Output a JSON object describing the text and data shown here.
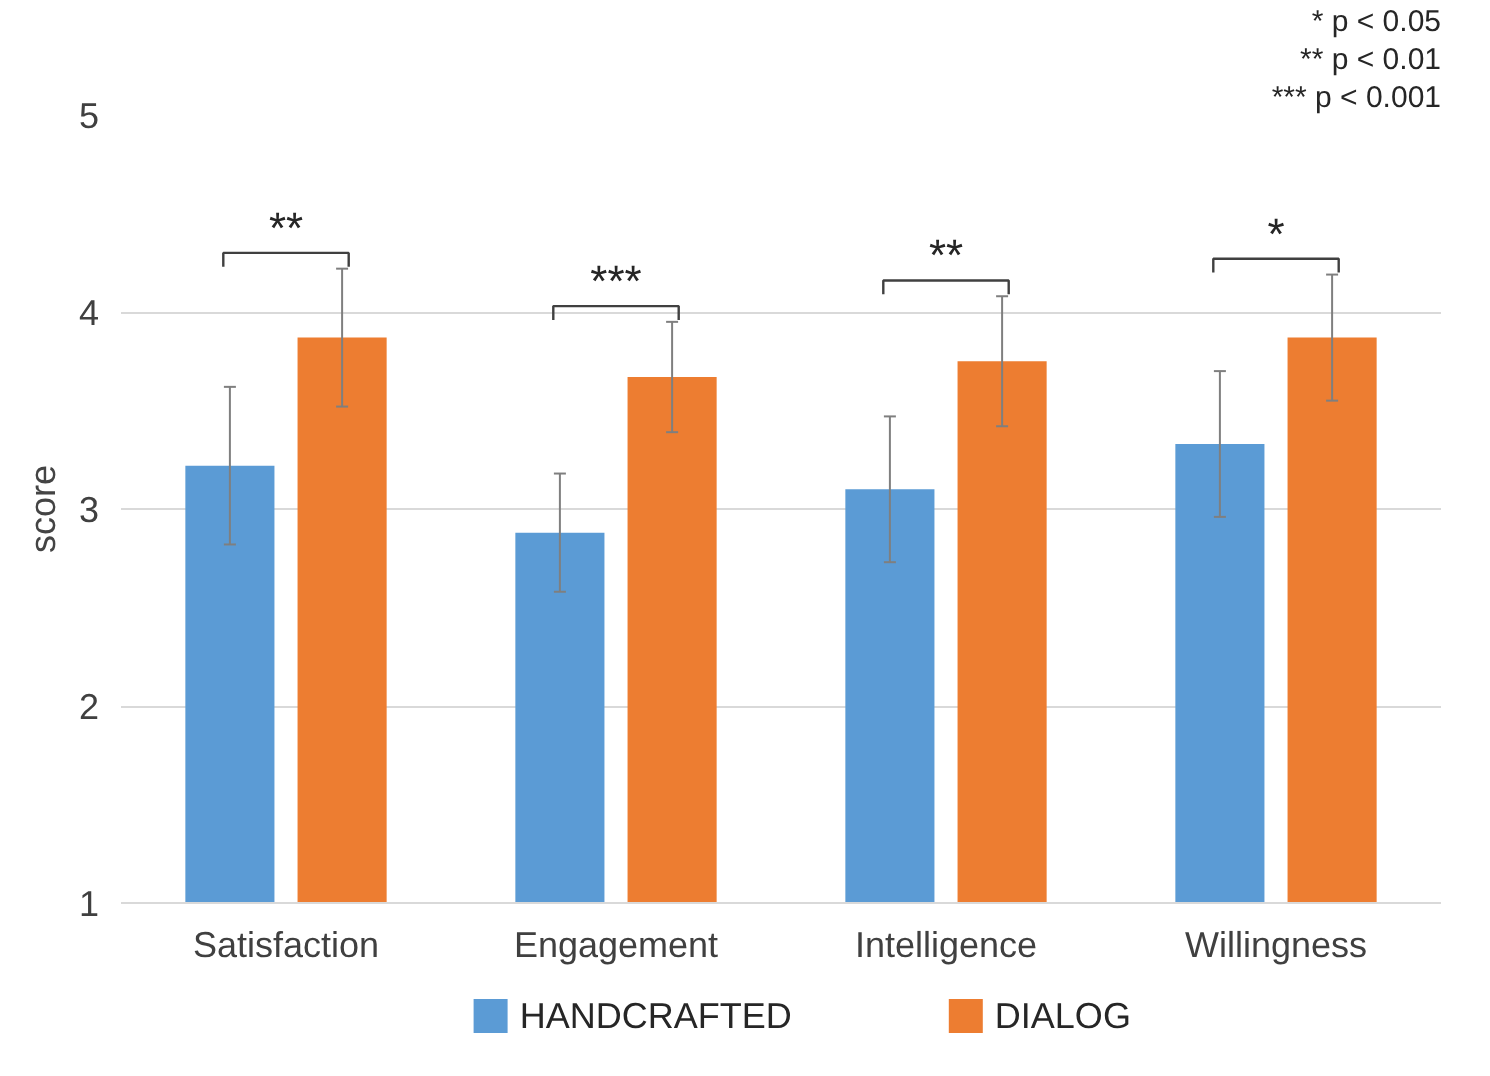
{
  "chart_data": {
    "type": "bar",
    "ylabel": "score",
    "categories": [
      "Satisfaction",
      "Engagement",
      "Intelligence",
      "Willingness"
    ],
    "series": [
      {
        "name": "HANDCRAFTED",
        "color": "#5b9bd5",
        "values": [
          3.22,
          2.88,
          3.1,
          3.33
        ],
        "errors": [
          0.4,
          0.3,
          0.37,
          0.37
        ]
      },
      {
        "name": "DIALOG",
        "color": "#ed7d31",
        "values": [
          3.87,
          3.67,
          3.75,
          3.87
        ],
        "errors": [
          0.35,
          0.28,
          0.33,
          0.32
        ]
      }
    ],
    "ylim": [
      1,
      5
    ],
    "yticks": [
      1,
      2,
      3,
      4,
      5
    ],
    "grid": "y",
    "legend": "bottom",
    "annotations": [
      "**",
      "***",
      "**",
      "*",
      "* p < 0.05",
      "** p < 0.01",
      "*** p < 0.001"
    ]
  }
}
